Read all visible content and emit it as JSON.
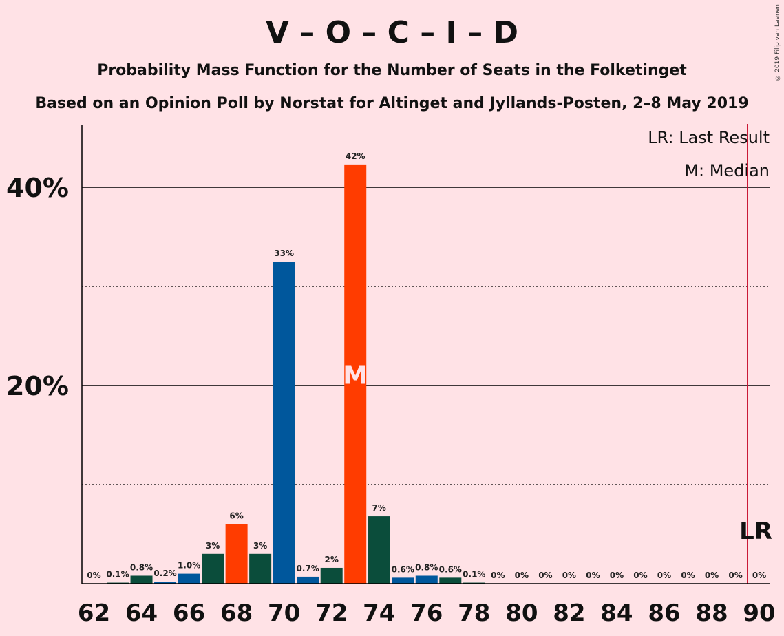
{
  "chart_data": {
    "type": "bar",
    "title": "V – O – C – I – D",
    "subtitle": "Probability Mass Function for the Number of Seats in the Folketinget",
    "subtitle2": "Based on an Opinion Poll by Norstat for Altinget and Jyllands-Posten, 2–8 May 2019",
    "copyright": "© 2019 Filip van Laenen",
    "legend": {
      "lr": "LR: Last Result",
      "m": "M: Median",
      "position": "top-right"
    },
    "xlabel": "",
    "ylabel": "",
    "ylim": [
      0,
      46
    ],
    "y_ticks": [
      {
        "value": 20,
        "label": "20%",
        "style": "solid"
      },
      {
        "value": 40,
        "label": "40%",
        "style": "solid"
      }
    ],
    "y_dotted": [
      10,
      30
    ],
    "x_tick_labels": [
      "62",
      "64",
      "66",
      "68",
      "70",
      "72",
      "74",
      "76",
      "78",
      "80",
      "82",
      "84",
      "86",
      "88",
      "90"
    ],
    "x_tick_values": [
      62,
      64,
      66,
      68,
      70,
      72,
      74,
      76,
      78,
      80,
      82,
      84,
      86,
      88,
      90
    ],
    "last_result": {
      "seats": 89.5,
      "label": "LR",
      "color": "#C8102E"
    },
    "median": {
      "seats": 73,
      "label": "M"
    },
    "bars": [
      {
        "seats": 62,
        "value": 0,
        "label": "0%",
        "color": "#0B4D3B"
      },
      {
        "seats": 63,
        "value": 0.1,
        "label": "0.1%",
        "color": "#0B4D3B"
      },
      {
        "seats": 64,
        "value": 0.8,
        "label": "0.8%",
        "color": "#0B4D3B"
      },
      {
        "seats": 65,
        "value": 0.2,
        "label": "0.2%",
        "color": "#00579C"
      },
      {
        "seats": 66,
        "value": 1.0,
        "label": "1.0%",
        "color": "#00579C"
      },
      {
        "seats": 67,
        "value": 3,
        "label": "3%",
        "color": "#0B4D3B"
      },
      {
        "seats": 68,
        "value": 6,
        "label": "6%",
        "color": "#FF3C00"
      },
      {
        "seats": 69,
        "value": 3,
        "label": "3%",
        "color": "#0B4D3B"
      },
      {
        "seats": 70,
        "value": 32.5,
        "label": "33%",
        "color": "#00579C"
      },
      {
        "seats": 71,
        "value": 0.7,
        "label": "0.7%",
        "color": "#00579C"
      },
      {
        "seats": 72,
        "value": 1.6,
        "label": "2%",
        "color": "#0B4D3B"
      },
      {
        "seats": 73,
        "value": 42.3,
        "label": "42%",
        "color": "#FF3C00"
      },
      {
        "seats": 74,
        "value": 6.8,
        "label": "7%",
        "color": "#0B4D3B"
      },
      {
        "seats": 75,
        "value": 0.6,
        "label": "0.6%",
        "color": "#00579C"
      },
      {
        "seats": 76,
        "value": 0.8,
        "label": "0.8%",
        "color": "#00579C"
      },
      {
        "seats": 77,
        "value": 0.6,
        "label": "0.6%",
        "color": "#0B4D3B"
      },
      {
        "seats": 78,
        "value": 0.1,
        "label": "0.1%",
        "color": "#0B4D3B"
      },
      {
        "seats": 79,
        "value": 0,
        "label": "0%",
        "color": "#0B4D3B"
      },
      {
        "seats": 80,
        "value": 0,
        "label": "0%",
        "color": "#0B4D3B"
      },
      {
        "seats": 81,
        "value": 0,
        "label": "0%",
        "color": "#0B4D3B"
      },
      {
        "seats": 82,
        "value": 0,
        "label": "0%",
        "color": "#0B4D3B"
      },
      {
        "seats": 83,
        "value": 0,
        "label": "0%",
        "color": "#0B4D3B"
      },
      {
        "seats": 84,
        "value": 0,
        "label": "0%",
        "color": "#0B4D3B"
      },
      {
        "seats": 85,
        "value": 0,
        "label": "0%",
        "color": "#0B4D3B"
      },
      {
        "seats": 86,
        "value": 0,
        "label": "0%",
        "color": "#0B4D3B"
      },
      {
        "seats": 87,
        "value": 0,
        "label": "0%",
        "color": "#0B4D3B"
      },
      {
        "seats": 88,
        "value": 0,
        "label": "0%",
        "color": "#0B4D3B"
      },
      {
        "seats": 89,
        "value": 0,
        "label": "0%",
        "color": "#0B4D3B"
      },
      {
        "seats": 90,
        "value": 0,
        "label": "0%",
        "color": "#0B4D3B"
      }
    ]
  }
}
